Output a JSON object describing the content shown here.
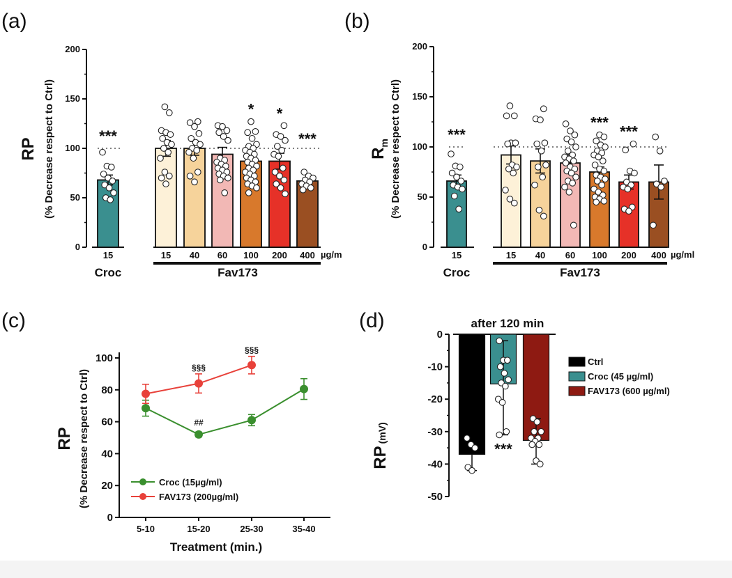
{
  "chart_data": [
    {
      "id": "a",
      "panel_label": "(a)",
      "type": "bar",
      "ylabel_main": "RP",
      "ylabel_sub": "(% Decrease respect to Ctrl)",
      "ylim": [
        0,
        200
      ],
      "yticks": [
        0,
        50,
        100,
        150,
        200
      ],
      "reference_line": 100,
      "unit_label": "µg/m",
      "groups": [
        {
          "name": "Croc",
          "categories": [
            "15"
          ]
        },
        {
          "name": "Fav173",
          "categories": [
            "15",
            "40",
            "60",
            "100",
            "200",
            "400"
          ]
        }
      ],
      "bars": [
        {
          "group": "Croc",
          "category": "15",
          "value": 68,
          "sem": 5,
          "color": "#3a8f8f",
          "significance": "***",
          "points": [
            96,
            82,
            81,
            74,
            70,
            67,
            63,
            60,
            55,
            50,
            48
          ]
        },
        {
          "group": "Fav173",
          "category": "15",
          "value": 100,
          "sem": 8,
          "color": "#fdf1d8",
          "significance": "",
          "points": [
            142,
            136,
            118,
            116,
            114,
            110,
            106,
            104,
            100,
            96,
            90,
            76,
            72,
            70,
            64
          ]
        },
        {
          "group": "Fav173",
          "category": "40",
          "value": 100,
          "sem": 7,
          "color": "#f6d39b",
          "significance": "",
          "points": [
            127,
            126,
            122,
            115,
            110,
            106,
            104,
            100,
            98,
            96,
            90,
            76,
            72,
            66
          ]
        },
        {
          "group": "Fav173",
          "category": "60",
          "value": 94,
          "sem": 7,
          "color": "#f2b8b5",
          "significance": "",
          "points": [
            123,
            122,
            118,
            116,
            112,
            108,
            90,
            88,
            86,
            84,
            82,
            80,
            78,
            76,
            74,
            72,
            70,
            68,
            55
          ]
        },
        {
          "group": "Fav173",
          "category": "100",
          "value": 87,
          "sem": 4,
          "color": "#d8792c",
          "significance": "*",
          "points": [
            127,
            117,
            116,
            110,
            104,
            102,
            100,
            98,
            96,
            94,
            92,
            90,
            88,
            86,
            84,
            82,
            80,
            78,
            76,
            74,
            72,
            70,
            68,
            66,
            64,
            62,
            60,
            55
          ]
        },
        {
          "group": "Fav173",
          "category": "200",
          "value": 87,
          "sem": 8,
          "color": "#e63128",
          "significance": "*",
          "points": [
            123,
            114,
            112,
            108,
            102,
            98,
            94,
            92,
            80,
            76,
            72,
            68,
            64,
            60,
            54
          ]
        },
        {
          "group": "Fav173",
          "category": "400",
          "value": 67,
          "sem": 3,
          "color": "#9a4f22",
          "significance": "***",
          "points": [
            76,
            72,
            70,
            68,
            66,
            64,
            62,
            60,
            58
          ]
        }
      ]
    },
    {
      "id": "b",
      "panel_label": "(b)",
      "type": "bar",
      "ylabel_main": "R",
      "ylabel_main_subscript": "m",
      "ylabel_sub": "(% Decrease respect to Ctrl)",
      "ylim": [
        0,
        200
      ],
      "yticks": [
        0,
        50,
        100,
        150,
        200
      ],
      "reference_line": 100,
      "unit_label": "µg/ml",
      "groups": [
        {
          "name": "Croc",
          "categories": [
            "15"
          ]
        },
        {
          "name": "Fav173",
          "categories": [
            "15",
            "40",
            "60",
            "100",
            "200",
            "400"
          ]
        }
      ],
      "bars": [
        {
          "group": "Croc",
          "category": "15",
          "value": 66,
          "sem": 6,
          "color": "#3a8f8f",
          "significance": "***",
          "points": [
            93,
            81,
            80,
            74,
            70,
            66,
            62,
            60,
            58,
            51,
            38
          ]
        },
        {
          "group": "Fav173",
          "category": "15",
          "value": 92,
          "sem": 9,
          "color": "#fdf1d8",
          "significance": "",
          "points": [
            141,
            131,
            131,
            104,
            104,
            103,
            82,
            80,
            78,
            74,
            57,
            48,
            44
          ]
        },
        {
          "group": "Fav173",
          "category": "40",
          "value": 86,
          "sem": 12,
          "color": "#f6d39b",
          "significance": "",
          "points": [
            138,
            128,
            127,
            104,
            103,
            96,
            82,
            80,
            70,
            62,
            37,
            31
          ]
        },
        {
          "group": "Fav173",
          "category": "60",
          "value": 84,
          "sem": 8,
          "color": "#f2b8b5",
          "significance": "",
          "points": [
            123,
            116,
            112,
            108,
            105,
            100,
            96,
            92,
            90,
            88,
            86,
            84,
            80,
            78,
            76,
            74,
            70,
            66,
            64,
            60,
            55,
            22
          ]
        },
        {
          "group": "Fav173",
          "category": "100",
          "value": 75,
          "sem": 5,
          "color": "#d8792c",
          "significance": "***",
          "points": [
            112,
            110,
            106,
            102,
            100,
            96,
            94,
            92,
            90,
            86,
            82,
            78,
            76,
            72,
            70,
            68,
            66,
            62,
            58,
            55,
            52,
            50,
            48,
            46,
            45
          ]
        },
        {
          "group": "Fav173",
          "category": "200",
          "value": 65,
          "sem": 7,
          "color": "#e63128",
          "significance": "***",
          "points": [
            103,
            97,
            76,
            74,
            65,
            62,
            60,
            58,
            40,
            38,
            36
          ]
        },
        {
          "group": "Fav173",
          "category": "400",
          "value": 65,
          "sem": 17,
          "color": "#9a4f22",
          "significance": "",
          "points": [
            110,
            96,
            66,
            63,
            60,
            22
          ]
        }
      ]
    },
    {
      "id": "c",
      "panel_label": "(c)",
      "type": "line",
      "ylabel_main": "RP",
      "ylabel_sub": "(% Decrease respect to Ctrl)",
      "xlabel": "Treatment (min.)",
      "categories": [
        "5-10",
        "15-20",
        "25-30",
        "35-40"
      ],
      "ylim": [
        0,
        105
      ],
      "yticks": [
        0,
        20,
        40,
        60,
        80,
        100
      ],
      "series": [
        {
          "name": "Croc",
          "legend_label": "Croc  (15µg/ml)",
          "color": "#3a8f2e",
          "values": [
            68.5,
            52,
            61,
            80.5
          ],
          "errors": [
            5,
            1.5,
            3.5,
            6.5
          ],
          "annotations": [
            null,
            "##",
            null,
            null
          ]
        },
        {
          "name": "FAV173",
          "legend_label": "FAV173 (200µg/ml)",
          "color": "#e8413a",
          "values": [
            77.5,
            84,
            95.5,
            null
          ],
          "errors": [
            6,
            6,
            5.5,
            null
          ],
          "annotations": [
            null,
            "§§§",
            "§§§",
            null
          ]
        }
      ],
      "legend_placement": "bottom-left"
    },
    {
      "id": "d",
      "panel_label": "(d)",
      "type": "bar",
      "title": "after 120 min",
      "ylabel_main": "RP",
      "ylabel_unit": "(mV)",
      "ylim": [
        -50,
        0
      ],
      "yticks": [
        0,
        -10,
        -20,
        -30,
        -40,
        -50
      ],
      "categories": [
        "Ctrl",
        "Croc (45 µg/ml)",
        "FAV173 (600 µg/ml)"
      ],
      "bars": [
        {
          "name": "Ctrl",
          "value": -37,
          "err_low": -42,
          "err_high": -37,
          "color": "#000000",
          "significance": "",
          "points": [
            -32,
            -34,
            -35,
            -41,
            -42
          ]
        },
        {
          "name": "Croc (45 µg/ml)",
          "value": -15.3,
          "err_low": -31,
          "err_high": -2,
          "color": "#3a8f8f",
          "significance": "***",
          "points": [
            -2,
            -8,
            -8,
            -10,
            -12,
            -14,
            -15,
            -16,
            -20,
            -21,
            -30,
            -31
          ]
        },
        {
          "name": "FAV173 (600 µg/ml)",
          "value": -32.7,
          "err_low": -40,
          "err_high": -26,
          "color": "#8e1a12",
          "significance": "",
          "points": [
            -26,
            -27,
            -30,
            -30,
            -32,
            -32,
            -33,
            -34,
            -34,
            -39,
            -40
          ]
        }
      ],
      "legend_placement": "right"
    }
  ]
}
